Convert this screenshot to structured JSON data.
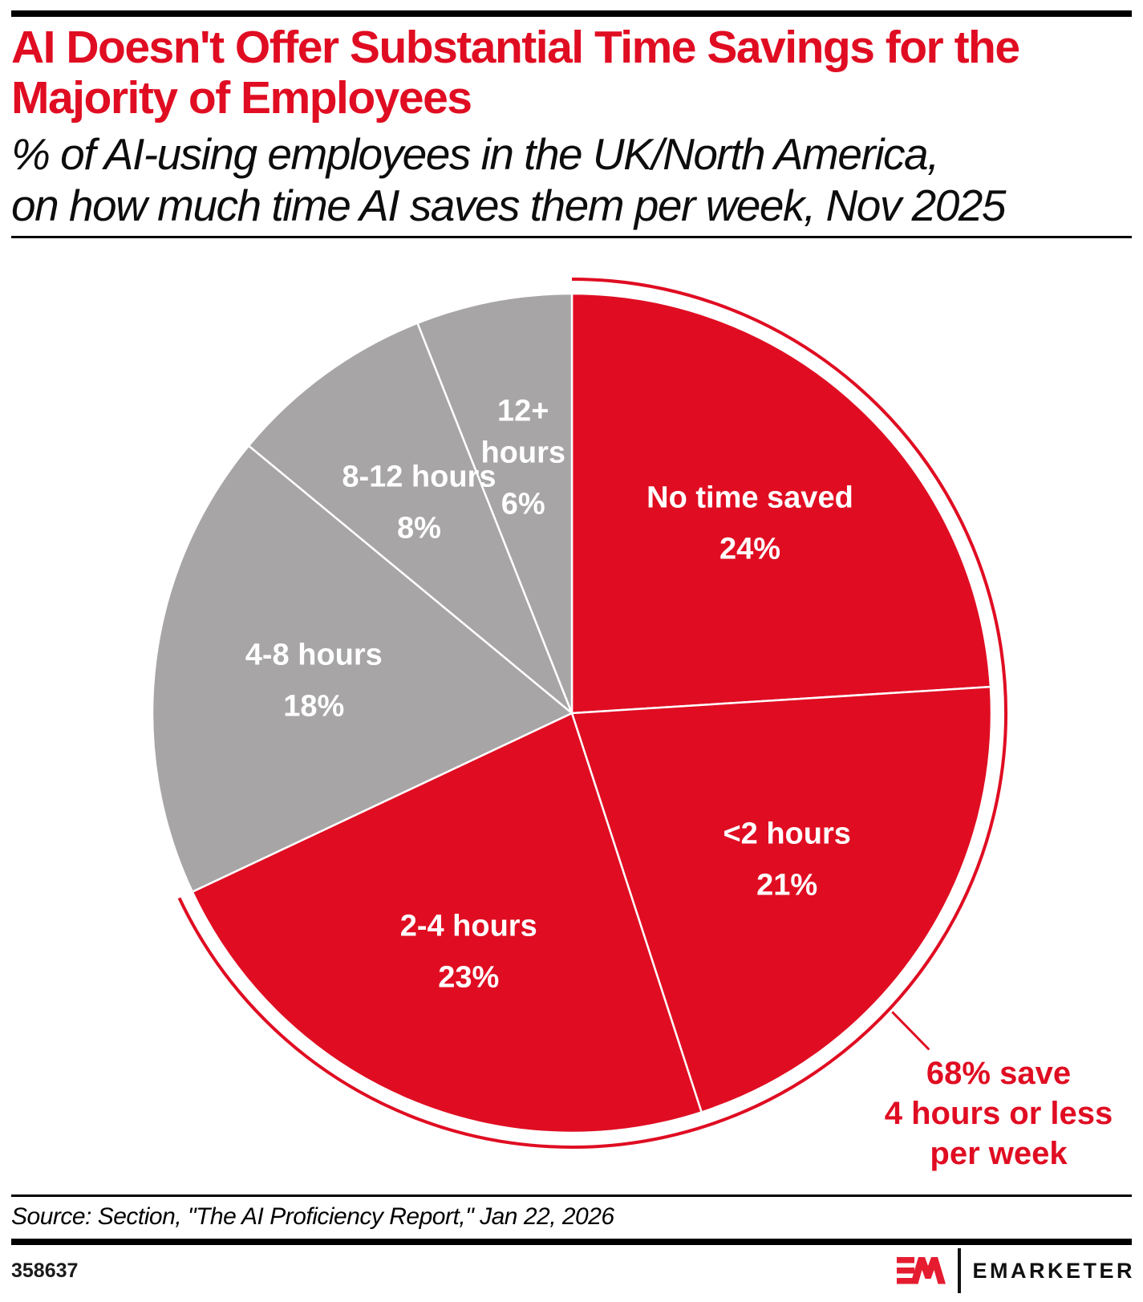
{
  "header": {
    "title_lines": [
      "AI Doesn't Offer Substantial Time Savings for the",
      "Majority of Employees"
    ],
    "subtitle_lines": [
      "% of AI-using employees in the UK/North America,",
      "on how much time AI saves them per week, Nov 2025"
    ]
  },
  "chart_data": {
    "type": "pie",
    "title": "AI Doesn't Offer Substantial Time Savings for the Majority of Employees",
    "unit": "% of AI-using employees in the UK/North America, Nov 2025",
    "start_angle_deg": 0,
    "direction": "clockwise",
    "slices": [
      {
        "label_lines": [
          "No time saved"
        ],
        "value": 24,
        "color": "#e00d22",
        "text_color": "#ffffff"
      },
      {
        "label_lines": [
          "<2 hours"
        ],
        "value": 21,
        "color": "#e00d22",
        "text_color": "#ffffff"
      },
      {
        "label_lines": [
          "2-4 hours"
        ],
        "value": 23,
        "color": "#e00d22",
        "text_color": "#ffffff"
      },
      {
        "label_lines": [
          "4-8 hours"
        ],
        "value": 18,
        "color": "#a7a5a6",
        "text_color": "#ffffff"
      },
      {
        "label_lines": [
          "8-12 hours"
        ],
        "value": 8,
        "color": "#a7a5a6",
        "text_color": "#ffffff"
      },
      {
        "label_lines": [
          "12+",
          "hours"
        ],
        "value": 6,
        "color": "#a7a5a6",
        "text_color": "#ffffff"
      }
    ],
    "highlight": {
      "arc_span_pct": 68,
      "annotation_lines": [
        "68% save",
        "4 hours or less",
        "per week"
      ],
      "color": "#e00d22"
    }
  },
  "footer": {
    "source": "Source: Section, \"The AI Proficiency Report,\" Jan 22, 2026",
    "chart_id": "358637",
    "brand": "EMARKETER"
  },
  "colors": {
    "accent_red": "#e00d22",
    "neutral_gray": "#a7a5a6",
    "logo_red": "#e51c30",
    "bar_black": "#000000"
  }
}
